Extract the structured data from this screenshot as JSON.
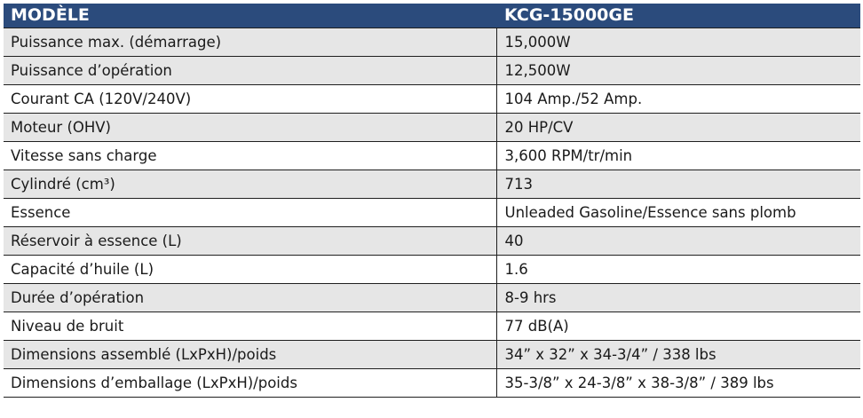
{
  "header": {
    "label_col": "MODÈLE",
    "value_col": "KCG-15000GE"
  },
  "rows": [
    {
      "label": "Puissance max. (démarrage)",
      "value": "15,000W"
    },
    {
      "label": "Puissance d’opération",
      "value": "12,500W"
    },
    {
      "label": "Courant CA (120V/240V)",
      "value": "104 Amp./52 Amp."
    },
    {
      "label": "Moteur (OHV)",
      "value": "20 HP/CV"
    },
    {
      "label": "Vitesse sans charge",
      "value": "3,600 RPM/tr/min"
    },
    {
      "label": "Cylindré (cm³)",
      "value": "713"
    },
    {
      "label": "Essence",
      "value": "Unleaded Gasoline/Essence sans plomb"
    },
    {
      "label": "Réservoir à essence (L)",
      "value": "40"
    },
    {
      "label": "Capacité d’huile (L)",
      "value": "1.6"
    },
    {
      "label": "Durée d’opération",
      "value": "8-9 hrs"
    },
    {
      "label": "Niveau de bruit",
      "value": "77 dB(A)"
    },
    {
      "label": "Dimensions assemblé (LxPxH)/poids",
      "value": "34” x 32” x 34-3/4” / 338 lbs"
    },
    {
      "label": "Dimensions d’emballage (LxPxH)/poids",
      "value": "35-3/8” x 24-3/8” x 38-3/8” / 389 lbs"
    }
  ],
  "colors": {
    "header_bg": "#2b4b7c",
    "header_text": "#ffffff",
    "row_shade": "#e6e6e6",
    "row_plain": "#ffffff",
    "grid": "#1f1f1f"
  }
}
